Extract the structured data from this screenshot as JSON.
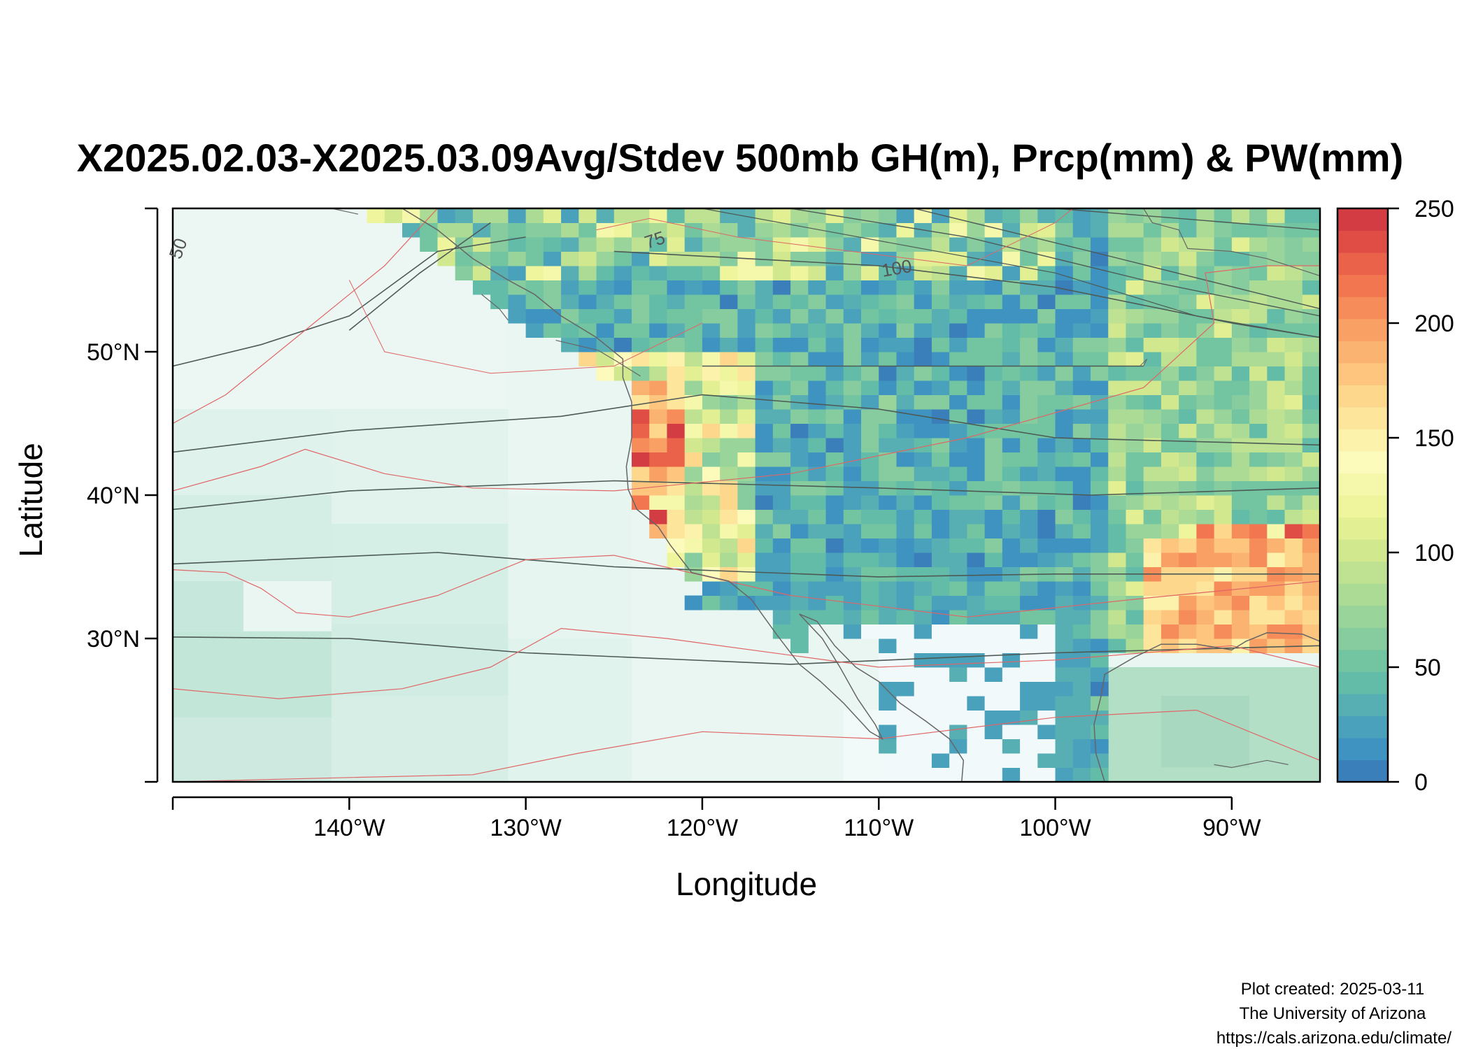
{
  "title": "X2025.02.03-X2025.03.09Avg/Stdev 500mb GH(m), Prcp(mm) & PW(mm)",
  "map": {
    "xlabel": "Longitude",
    "ylabel": "Latitude",
    "lon_range": [
      -150,
      -85
    ],
    "lat_range": [
      20,
      60
    ],
    "x_ticks": [
      {
        "value": -140,
        "label": "140°W"
      },
      {
        "value": -130,
        "label": "130°W"
      },
      {
        "value": -120,
        "label": "120°W"
      },
      {
        "value": -110,
        "label": "110°W"
      },
      {
        "value": -100,
        "label": "100°W"
      },
      {
        "value": -90,
        "label": "90°W"
      }
    ],
    "y_ticks": [
      {
        "value": 30,
        "label": "30°N"
      },
      {
        "value": 40,
        "label": "40°N"
      },
      {
        "value": 50,
        "label": "50°N"
      }
    ],
    "contour_labels": [
      {
        "text": "50",
        "lon": -149.5,
        "lat": 57.2
      },
      {
        "text": "75",
        "lon": -122.4,
        "lat": 58.3
      },
      {
        "text": "100",
        "lon": -108.8,
        "lat": 56.3
      }
    ]
  },
  "colorbar": {
    "range": [
      0,
      250
    ],
    "ticks": [
      {
        "value": 0,
        "label": "0"
      },
      {
        "value": 50,
        "label": "50"
      },
      {
        "value": 100,
        "label": "100"
      },
      {
        "value": 150,
        "label": "150"
      },
      {
        "value": 200,
        "label": "200"
      },
      {
        "value": 250,
        "label": "250"
      }
    ],
    "colors": [
      "#3a7fba",
      "#3f93c0",
      "#4aa1bc",
      "#57afb3",
      "#63bca8",
      "#73c4a1",
      "#86cc9e",
      "#99d49a",
      "#acdb96",
      "#bfe292",
      "#d2e88f",
      "#e2ef92",
      "#eef59c",
      "#f5f8ab",
      "#fcfbbc",
      "#fdf2ac",
      "#fde59c",
      "#fdd78c",
      "#fdc57e",
      "#fbb371",
      "#f9a065",
      "#f68c5a",
      "#f27650",
      "#ea6249",
      "#df4d45",
      "#d33c43"
    ]
  },
  "credits": {
    "line1": "Plot created: 2025-03-11",
    "line2": "The University of Arizona",
    "line3": "https://cals.arizona.edu/climate/"
  }
}
